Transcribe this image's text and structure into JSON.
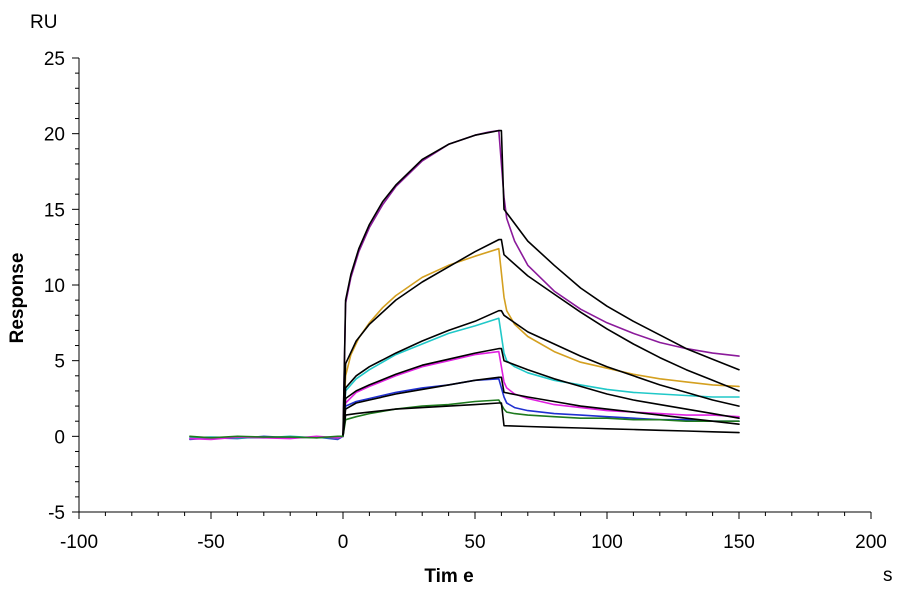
{
  "chart_data": {
    "type": "line",
    "xlabel": "Tim e",
    "ylabel": "Response",
    "x_unit": "s",
    "y_unit": "RU",
    "xlim": [
      -100,
      200
    ],
    "ylim": [
      -5,
      25
    ],
    "x_ticks": [
      -100,
      -50,
      0,
      50,
      100,
      150,
      200
    ],
    "y_ticks": [
      -5,
      0,
      5,
      10,
      15,
      20,
      25
    ],
    "grid": false,
    "legend": "none",
    "series": [
      {
        "color": "#8B1A9B",
        "x": [
          0,
          1,
          3,
          6,
          10,
          15,
          20,
          30,
          40,
          50,
          55,
          59,
          61,
          62,
          65,
          70,
          80,
          90,
          100,
          110,
          120,
          130,
          140,
          150
        ],
        "y": [
          0,
          8.8,
          10.5,
          12.2,
          13.8,
          15.3,
          16.5,
          18.2,
          19.3,
          19.9,
          20.1,
          20.2,
          15.8,
          14.4,
          12.9,
          11.3,
          9.6,
          8.4,
          7.5,
          6.8,
          6.2,
          5.8,
          5.5,
          5.3
        ]
      },
      {
        "color": "#D4A020",
        "x": [
          0,
          1,
          3,
          6,
          10,
          15,
          20,
          30,
          40,
          50,
          59,
          61,
          62,
          65,
          70,
          80,
          90,
          100,
          110,
          120,
          130,
          140,
          150
        ],
        "y": [
          0,
          4.0,
          5.4,
          6.5,
          7.5,
          8.5,
          9.3,
          10.5,
          11.3,
          11.9,
          12.4,
          9.2,
          8.3,
          7.4,
          6.6,
          5.6,
          4.9,
          4.5,
          4.1,
          3.8,
          3.6,
          3.4,
          3.3
        ]
      },
      {
        "color": "#20C8C8",
        "x": [
          0,
          1,
          5,
          10,
          20,
          30,
          40,
          50,
          59,
          61,
          62,
          65,
          70,
          80,
          90,
          100,
          110,
          120,
          130,
          140,
          150
        ],
        "y": [
          0,
          3.0,
          3.8,
          4.4,
          5.4,
          6.1,
          6.8,
          7.3,
          7.8,
          5.5,
          5.0,
          4.6,
          4.2,
          3.7,
          3.4,
          3.1,
          2.9,
          2.8,
          2.7,
          2.6,
          2.6
        ]
      },
      {
        "color": "#E020E0",
        "x": [
          0,
          1,
          5,
          10,
          20,
          30,
          40,
          50,
          59,
          61,
          62,
          65,
          70,
          80,
          90,
          100,
          110,
          120,
          130,
          140,
          150
        ],
        "y": [
          0,
          2.2,
          2.9,
          3.3,
          4.0,
          4.6,
          5.0,
          5.4,
          5.6,
          3.6,
          3.2,
          2.8,
          2.5,
          2.1,
          1.9,
          1.7,
          1.6,
          1.5,
          1.4,
          1.4,
          1.3
        ]
      },
      {
        "color": "#2030D0",
        "x": [
          0,
          1,
          5,
          10,
          20,
          30,
          40,
          50,
          59,
          61,
          62,
          65,
          70,
          80,
          90,
          100,
          110,
          120,
          130,
          140,
          150
        ],
        "y": [
          0,
          2.0,
          2.3,
          2.5,
          2.9,
          3.2,
          3.4,
          3.7,
          3.8,
          2.6,
          2.2,
          1.9,
          1.7,
          1.5,
          1.4,
          1.3,
          1.2,
          1.1,
          1.1,
          1.0,
          1.0
        ]
      },
      {
        "color": "#1E7A1E",
        "x": [
          0,
          1,
          5,
          10,
          20,
          30,
          40,
          50,
          59,
          61,
          62,
          65,
          70,
          80,
          90,
          100,
          110,
          120,
          130,
          140,
          150
        ],
        "y": [
          0,
          1.1,
          1.3,
          1.5,
          1.8,
          2.0,
          2.1,
          2.3,
          2.4,
          1.8,
          1.6,
          1.5,
          1.4,
          1.3,
          1.2,
          1.2,
          1.1,
          1.1,
          1.0,
          1.0,
          1.0
        ]
      },
      {
        "color": "#000000",
        "x": [
          0,
          1,
          3,
          6,
          10,
          15,
          20,
          30,
          40,
          50,
          59,
          60,
          61,
          70,
          80,
          90,
          100,
          110,
          120,
          130,
          140,
          150
        ],
        "y": [
          0,
          9.0,
          10.7,
          12.4,
          14.0,
          15.5,
          16.6,
          18.3,
          19.3,
          19.9,
          20.2,
          20.2,
          15.0,
          12.9,
          11.3,
          9.8,
          8.6,
          7.6,
          6.7,
          5.8,
          5.1,
          4.4
        ]
      },
      {
        "color": "#000000",
        "x": [
          0,
          1,
          5,
          10,
          20,
          30,
          40,
          50,
          59,
          60,
          61,
          70,
          80,
          90,
          100,
          110,
          120,
          130,
          140,
          150
        ],
        "y": [
          0,
          4.8,
          6.3,
          7.4,
          9.0,
          10.2,
          11.2,
          12.2,
          13.0,
          13.0,
          12.0,
          10.6,
          9.4,
          8.2,
          7.1,
          6.1,
          5.2,
          4.4,
          3.7,
          3.0
        ]
      },
      {
        "color": "#000000",
        "x": [
          0,
          1,
          5,
          10,
          20,
          30,
          40,
          50,
          59,
          60,
          61,
          70,
          80,
          90,
          100,
          110,
          120,
          130,
          140,
          150
        ],
        "y": [
          0,
          3.2,
          4.0,
          4.6,
          5.5,
          6.3,
          7.0,
          7.6,
          8.3,
          8.3,
          8.0,
          6.9,
          6.1,
          5.3,
          4.6,
          4.0,
          3.4,
          2.9,
          2.4,
          2.0
        ]
      },
      {
        "color": "#000000",
        "x": [
          0,
          1,
          5,
          10,
          20,
          30,
          40,
          50,
          59,
          60,
          61,
          70,
          80,
          90,
          100,
          110,
          120,
          130,
          140,
          150
        ],
        "y": [
          0,
          2.5,
          3.0,
          3.4,
          4.1,
          4.7,
          5.1,
          5.5,
          5.8,
          5.8,
          5.0,
          4.4,
          3.8,
          3.3,
          2.8,
          2.4,
          2.1,
          1.8,
          1.5,
          1.2
        ]
      },
      {
        "color": "#000000",
        "x": [
          0,
          1,
          5,
          10,
          20,
          30,
          40,
          50,
          59,
          60,
          61,
          70,
          80,
          90,
          100,
          110,
          120,
          130,
          140,
          150
        ],
        "y": [
          0,
          1.8,
          2.2,
          2.4,
          2.8,
          3.1,
          3.4,
          3.7,
          3.9,
          3.9,
          2.9,
          2.6,
          2.3,
          2.0,
          1.8,
          1.6,
          1.4,
          1.2,
          1.0,
          0.8
        ]
      },
      {
        "color": "#000000",
        "x": [
          0,
          1,
          5,
          10,
          20,
          30,
          40,
          50,
          59,
          60,
          61,
          70,
          80,
          90,
          100,
          110,
          120,
          130,
          140,
          150
        ],
        "y": [
          0,
          1.4,
          1.5,
          1.6,
          1.8,
          1.9,
          2.0,
          2.1,
          2.2,
          2.2,
          0.7,
          0.65,
          0.6,
          0.55,
          0.5,
          0.45,
          0.4,
          0.35,
          0.3,
          0.25
        ]
      },
      {
        "color": "#3050C0",
        "x": [
          -58,
          -50,
          -40,
          -30,
          -20,
          -10,
          -2,
          0
        ],
        "y": [
          -0.2,
          -0.1,
          -0.15,
          0.0,
          -0.1,
          -0.05,
          -0.2,
          0
        ]
      },
      {
        "color": "#20B0B0",
        "x": [
          -58,
          -50,
          -40,
          -30,
          -20,
          -10,
          -2,
          0
        ],
        "y": [
          -0.1,
          -0.05,
          -0.1,
          -0.1,
          0.0,
          -0.1,
          -0.05,
          0
        ]
      },
      {
        "color": "#E020E0",
        "x": [
          -58,
          -50,
          -40,
          -30,
          -20,
          -10,
          -2,
          0
        ],
        "y": [
          -0.15,
          -0.2,
          -0.05,
          -0.1,
          -0.15,
          0.0,
          -0.1,
          0
        ]
      },
      {
        "color": "#1E7A1E",
        "x": [
          -58,
          -50,
          -40,
          -30,
          -20,
          -10,
          -2,
          0
        ],
        "y": [
          0.0,
          -0.1,
          0.0,
          -0.05,
          -0.05,
          -0.1,
          0.0,
          0
        ]
      }
    ]
  }
}
